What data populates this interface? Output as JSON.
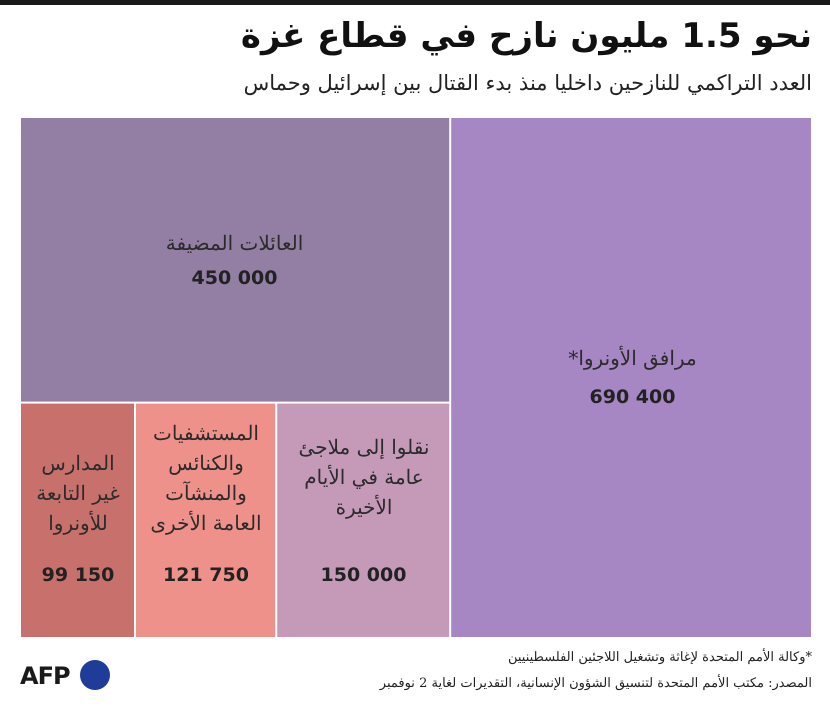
{
  "header": {
    "title": "نحو 1.5 مليون نازح في قطاع غزة",
    "subtitle": "العدد التراكمي للنازحين داخليا منذ بدء القتال بين إسرائيل وحماس"
  },
  "chart_data": {
    "type": "treemap",
    "unit": "people",
    "items": [
      {
        "label": "مرافق الأونروا*",
        "value": 690400,
        "display": "690 400",
        "color": "#a686c3"
      },
      {
        "label": "العائلات المضيفة",
        "value": 450000,
        "display": "450 000",
        "color": "#927fa3"
      },
      {
        "label": "نقلوا إلى ملاجئ عامة في الأيام الأخيرة",
        "value": 150000,
        "display": "150 000",
        "color": "#c49ab8"
      },
      {
        "label": "المستشفيات والكنائس والمنشآت العامة الأخرى",
        "value": 121750,
        "display": "121 750",
        "color": "#ee918b"
      },
      {
        "label": "المدارس غير التابعة للأونروا",
        "value": 99150,
        "display": "99 150",
        "color": "#c8716c"
      }
    ]
  },
  "footer": {
    "note": "*وكالة الأمم المتحدة لإغاثة وتشغيل اللاجئين الفلسطينيين",
    "source": "المصدر: مكتب الأمم المتحدة لتنسيق الشؤون الإنسانية، التقديرات لغاية 2 نوفمبر",
    "logo_text": "AFP"
  }
}
